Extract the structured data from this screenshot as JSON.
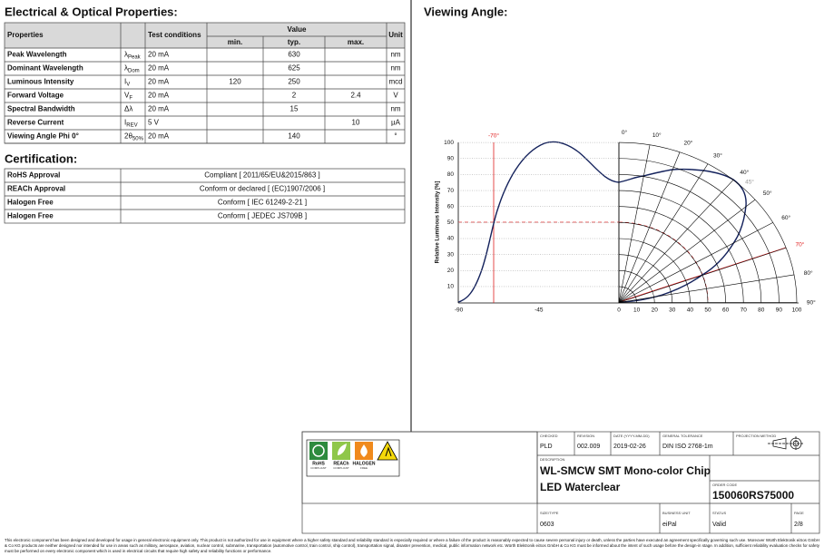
{
  "electrical": {
    "title": "Electrical & Optical Properties:",
    "headers": {
      "properties": "Properties",
      "test_conditions": "Test conditions",
      "value": "Value",
      "min": "min.",
      "typ": "typ.",
      "max": "max.",
      "unit": "Unit"
    },
    "rows": [
      {
        "property": "Peak Wavelength",
        "symbol": "λ",
        "symbol_sub": "Peak",
        "condition": "20 mA",
        "typ": 630,
        "unit": "nm"
      },
      {
        "property": "Dominant Wavelength",
        "symbol": "λ",
        "symbol_sub": "Dom",
        "condition": "20 mA",
        "typ": 625,
        "unit": "nm"
      },
      {
        "property": "Luminous Intensity",
        "symbol": "I",
        "symbol_sub": "V",
        "condition": "20 mA",
        "min": 120,
        "typ": 250,
        "unit": "mcd"
      },
      {
        "property": "Forward Voltage",
        "symbol": "V",
        "symbol_sub": "F",
        "condition": "20 mA",
        "typ": 2,
        "max": 2.4,
        "unit": "V"
      },
      {
        "property": "Spectral Bandwidth",
        "symbol": "Δλ",
        "condition": "20 mA",
        "typ": 15,
        "unit": "nm"
      },
      {
        "property": "Reverse Current",
        "symbol": "I",
        "symbol_sub": "REV",
        "condition": "5 V",
        "max": 10,
        "unit": "µA"
      },
      {
        "property": "Viewing Angle Phi 0°",
        "symbol": "2θ",
        "symbol_sub": "50%",
        "condition": "20 mA",
        "typ": 140,
        "unit": "°"
      }
    ]
  },
  "certification": {
    "title": "Certification:",
    "rows": [
      {
        "name": "RoHS Approval",
        "value": "Compliant [ 2011/65/EU&2015/863 ]"
      },
      {
        "name": "REACh Approval",
        "value": "Conform or declared [ (EC)1907/2006 ]"
      },
      {
        "name": "Halogen Free",
        "value": "Conform [ IEC 61249-2-21 ]"
      },
      {
        "name": "Halogen Free",
        "value": "Conform [ JEDEC JS709B ]"
      }
    ]
  },
  "viewing_angle": {
    "title": "Viewing Angle:",
    "y_label": "Relative Luminous Intensity [%]",
    "yticks": [
      10,
      20,
      30,
      40,
      50,
      60,
      70,
      80,
      90,
      100
    ],
    "xticks": [
      -90,
      -45,
      0,
      10,
      20,
      30,
      40,
      50,
      60,
      70,
      80,
      90,
      100
    ],
    "angle_labels": [
      "0°",
      "10°",
      "20°",
      "30°",
      "40°",
      "50°",
      "60°",
      "70°",
      "80°",
      "90°"
    ],
    "marker_left": "-70°",
    "marker_mid": "45°"
  },
  "title_block": {
    "badges": [
      {
        "name": "RoHS",
        "sub": "COMPLIANT"
      },
      {
        "name": "REACh",
        "sub": "COMPLIANT"
      },
      {
        "name": "HALOGEN",
        "sub": "FREE"
      }
    ],
    "checked_label": "CHECKED",
    "checked": "PLD",
    "revision_label": "REVISION",
    "revision": "002.009",
    "date_label": "DATE (YYYY-MM-DD)",
    "date": "2019-02-26",
    "tolerance_label": "GENERAL TOLERANCE",
    "tolerance": "DIN ISO 2768-1m",
    "projection_label": "PROJECTION METHOD",
    "description_label": "DESCRIPTION",
    "description_lines": [
      "WL-SMCW SMT Mono-color Chip",
      "LED Waterclear"
    ],
    "order_label": "ORDER CODE",
    "order_code": "150060RS75000",
    "size_label": "SIZE/TYPE",
    "size": "0603",
    "unit_label": "BUSINESS UNIT",
    "unit": "eiPal",
    "status_label": "STATUS",
    "status": "Valid",
    "page_label": "PAGE",
    "page": "2/8"
  },
  "footer": [
    "This electronic component has been designed and developed for usage in general electronic equipment only. This product is not authorized for use in equipment where a higher safety standard and reliability standard is especially required or where a failure of the product is reasonably expected to cause severe personal injury or death, unless the parties have executed an agreement specifically governing such use. Moreover Würth Elektronik eiSos GmbH",
    "& Co KG products are neither designed nor intended for use in areas such as military, aerospace, aviation, nuclear control, submarine, transportation (automotive control, train control, ship control), transportation signal, disaster prevention, medical, public information network etc. Würth Elektronik eiSos GmbH & Co KG must be informed about the intent of such usage before the design-in stage. In addition, sufficient reliability evaluation checks for safety",
    "must be performed on every electronic component which is used in electrical circuits that require high safety and reliability functions or performance."
  ]
}
